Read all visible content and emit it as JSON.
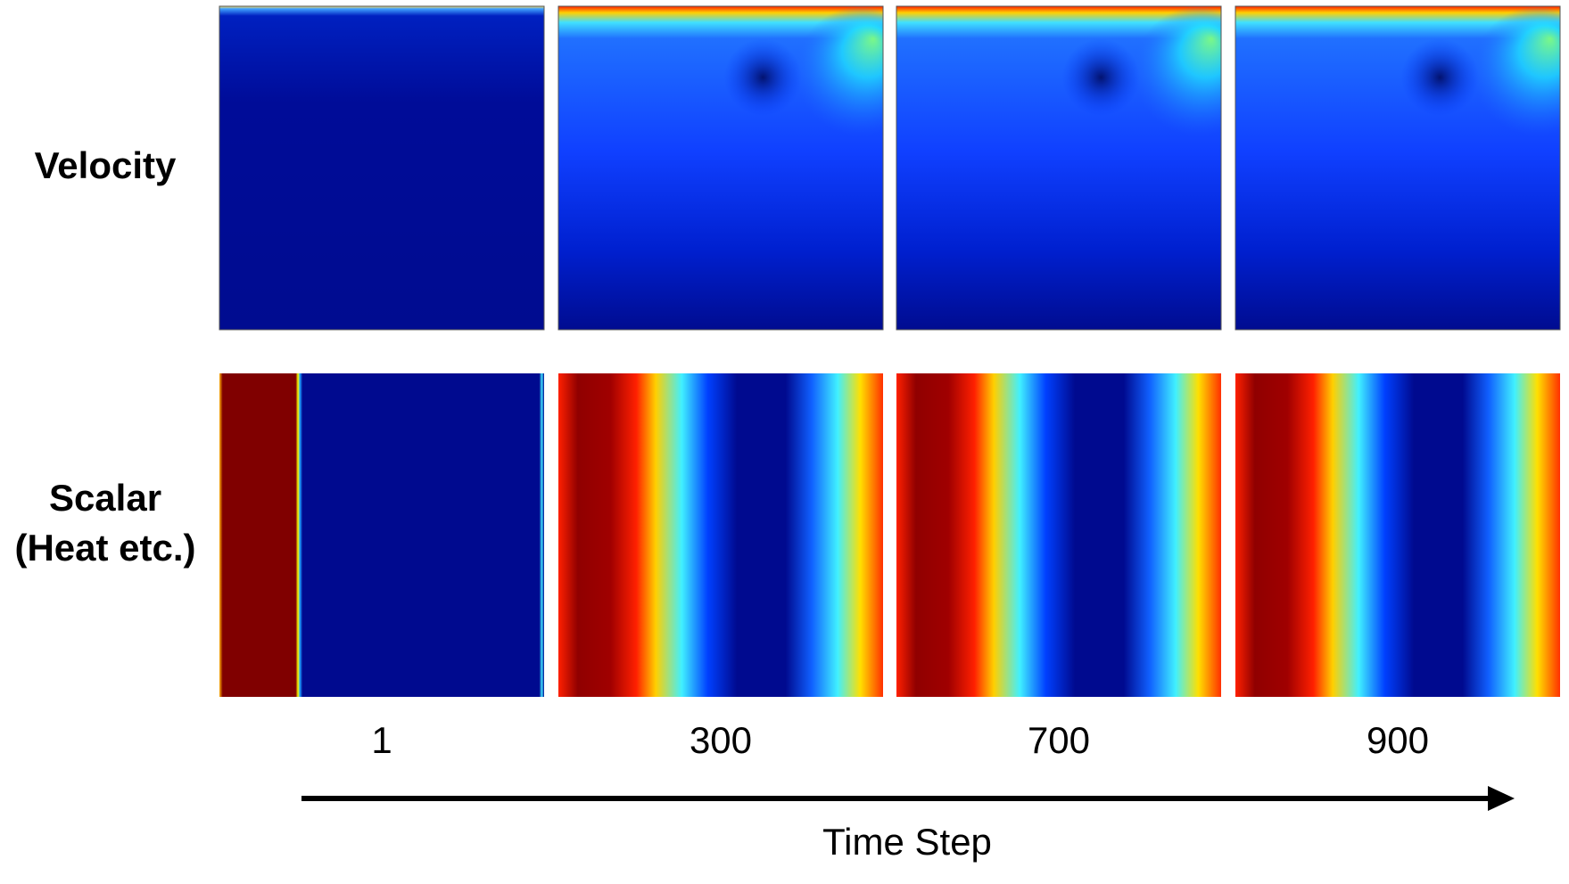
{
  "rows": [
    {
      "label_lines": [
        "Velocity"
      ]
    },
    {
      "label_lines": [
        "Scalar",
        "(Heat etc.)"
      ]
    }
  ],
  "time_steps": [
    1,
    300,
    700,
    900
  ],
  "axis_label": "Time Step"
}
